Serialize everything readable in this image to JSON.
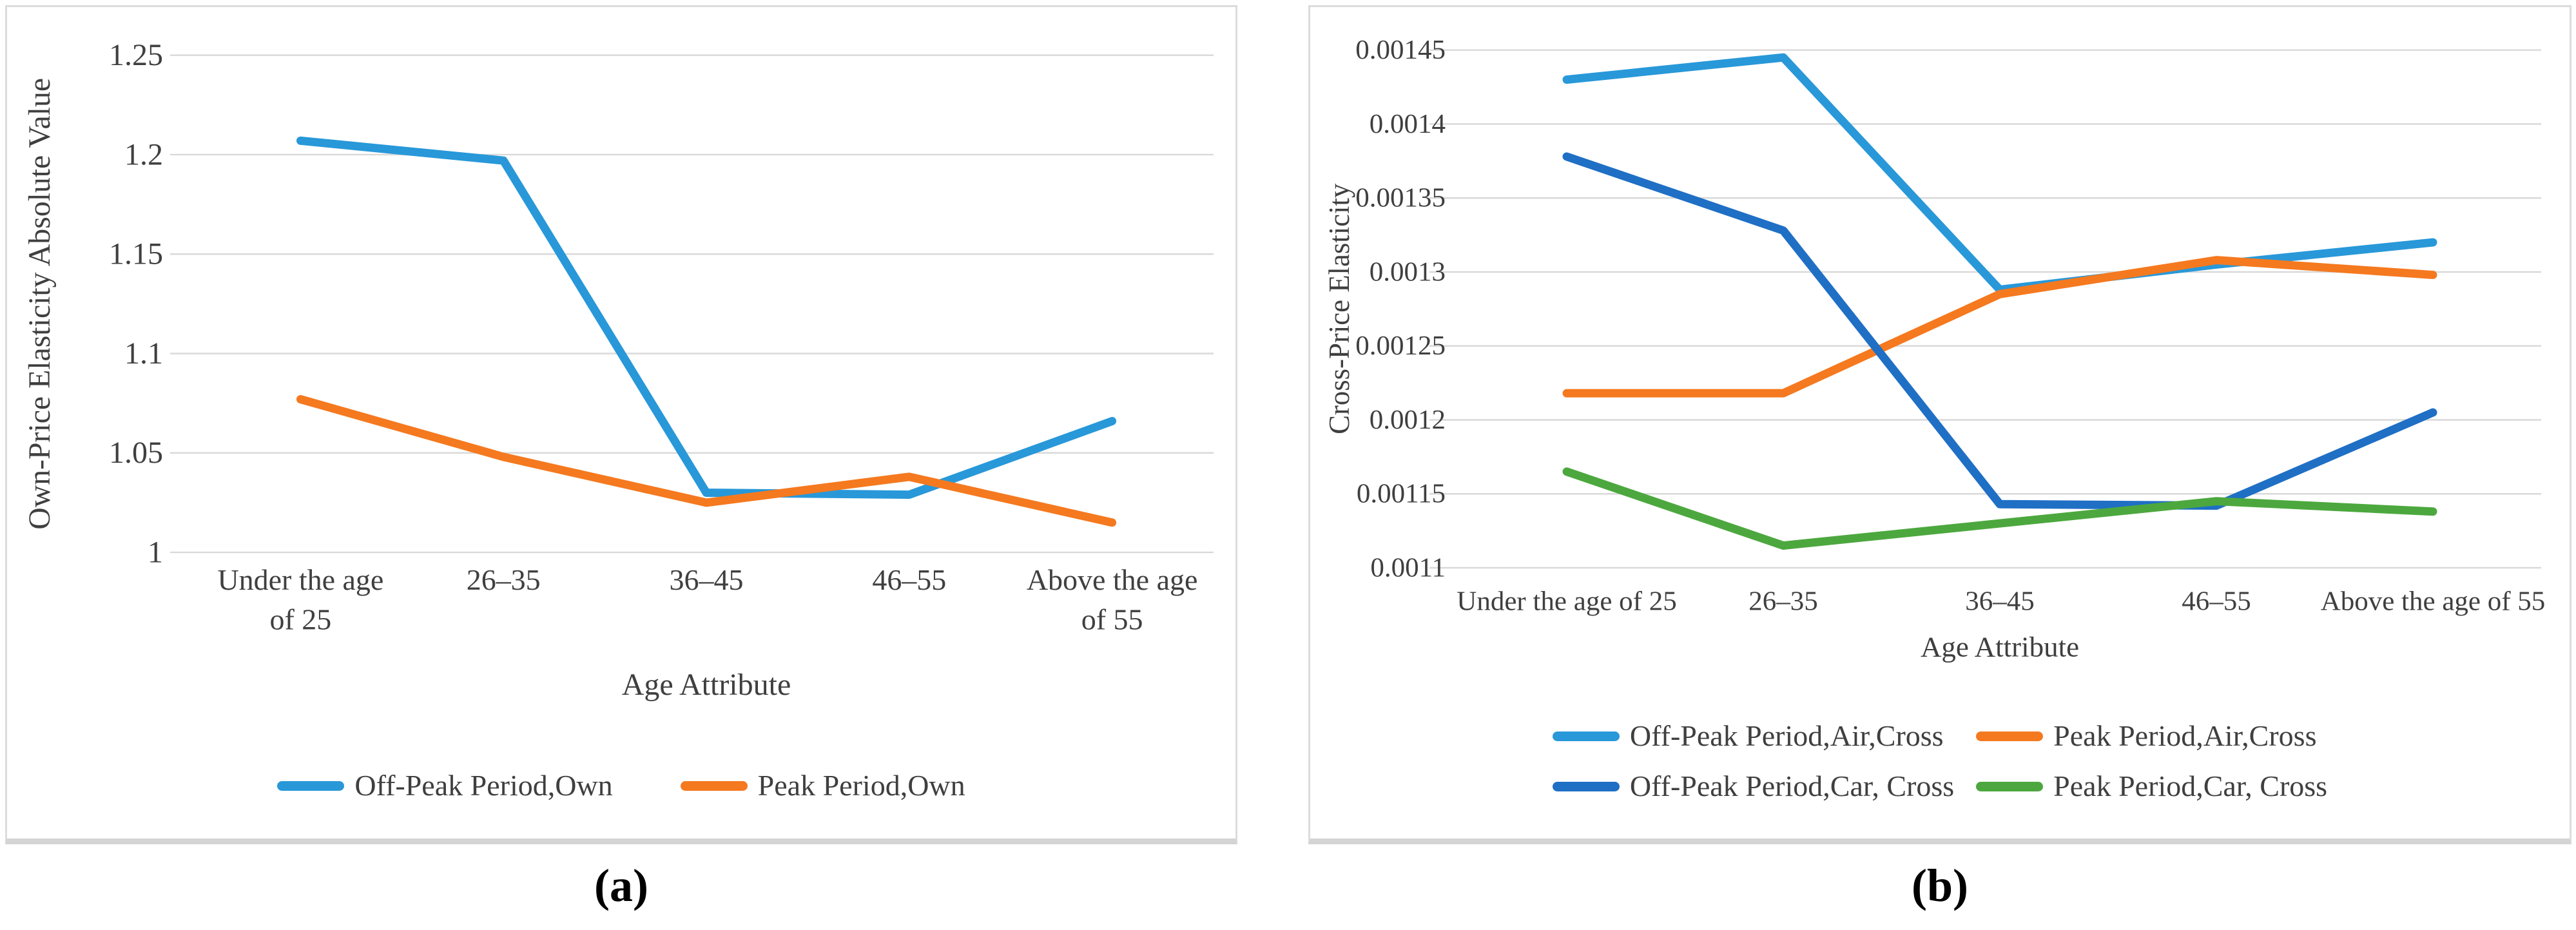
{
  "figure": {
    "captions": {
      "a": "(a)",
      "b": "(b)"
    }
  },
  "colors": {
    "light_blue": "#2898d9",
    "orange": "#f5791f",
    "dark_blue": "#1f6fc5",
    "green": "#4ca83e",
    "gridline": "#d9d9d9",
    "text": "#3f3f3f",
    "panel_border": "#dcdcdc"
  },
  "chart_data": [
    {
      "id": "a",
      "type": "line",
      "title": "",
      "xlabel": "Age Attribute",
      "ylabel": "Own-Price Elasticity Absolute Value",
      "categories": [
        "Under the age\nof 25",
        "26–35",
        "36–45",
        "46–55",
        "Above the age\nof 55"
      ],
      "ylim": [
        1,
        1.25
      ],
      "yticks": [
        1,
        1.05,
        1.1,
        1.15,
        1.2,
        1.25
      ],
      "ytick_labels": [
        "1",
        "1.05",
        "1.1",
        "1.15",
        "1.2",
        "1.25"
      ],
      "grid": true,
      "legend_position": "bottom",
      "series": [
        {
          "name": "Off-Peak Period,Own",
          "color": "#2898d9",
          "values": [
            1.207,
            1.197,
            1.03,
            1.029,
            1.066
          ]
        },
        {
          "name": "Peak Period,Own",
          "color": "#f5791f",
          "values": [
            1.077,
            1.048,
            1.025,
            1.038,
            1.015
          ]
        }
      ]
    },
    {
      "id": "b",
      "type": "line",
      "title": "",
      "xlabel": "Age Attribute",
      "ylabel": "Cross-Price Elasticity",
      "categories": [
        "Under the age of 25",
        "26–35",
        "36–45",
        "46–55",
        "Above the age of 55"
      ],
      "ylim": [
        0.0011,
        0.00145
      ],
      "yticks": [
        0.0011,
        0.00115,
        0.0012,
        0.00125,
        0.0013,
        0.00135,
        0.0014,
        0.00145
      ],
      "ytick_labels": [
        "0.0011",
        "0.00115",
        "0.0012",
        "0.00125",
        "0.0013",
        "0.00135",
        "0.0014",
        "0.00145"
      ],
      "grid": true,
      "legend_position": "bottom",
      "series": [
        {
          "name": "Off-Peak Period,Air,Cross",
          "color": "#2898d9",
          "values": [
            0.00143,
            0.001445,
            0.001288,
            0.001305,
            0.00132
          ]
        },
        {
          "name": "Peak Period,Air,Cross",
          "color": "#f5791f",
          "values": [
            0.001218,
            0.001218,
            0.001285,
            0.001308,
            0.001298
          ]
        },
        {
          "name": "Off-Peak Period,Car, Cross",
          "color": "#1f6fc5",
          "values": [
            0.001378,
            0.001328,
            0.001143,
            0.001142,
            0.001205
          ]
        },
        {
          "name": "Peak Period,Car, Cross",
          "color": "#4ca83e",
          "values": [
            0.001165,
            0.001115,
            0.00113,
            0.001145,
            0.001138
          ]
        }
      ]
    }
  ]
}
